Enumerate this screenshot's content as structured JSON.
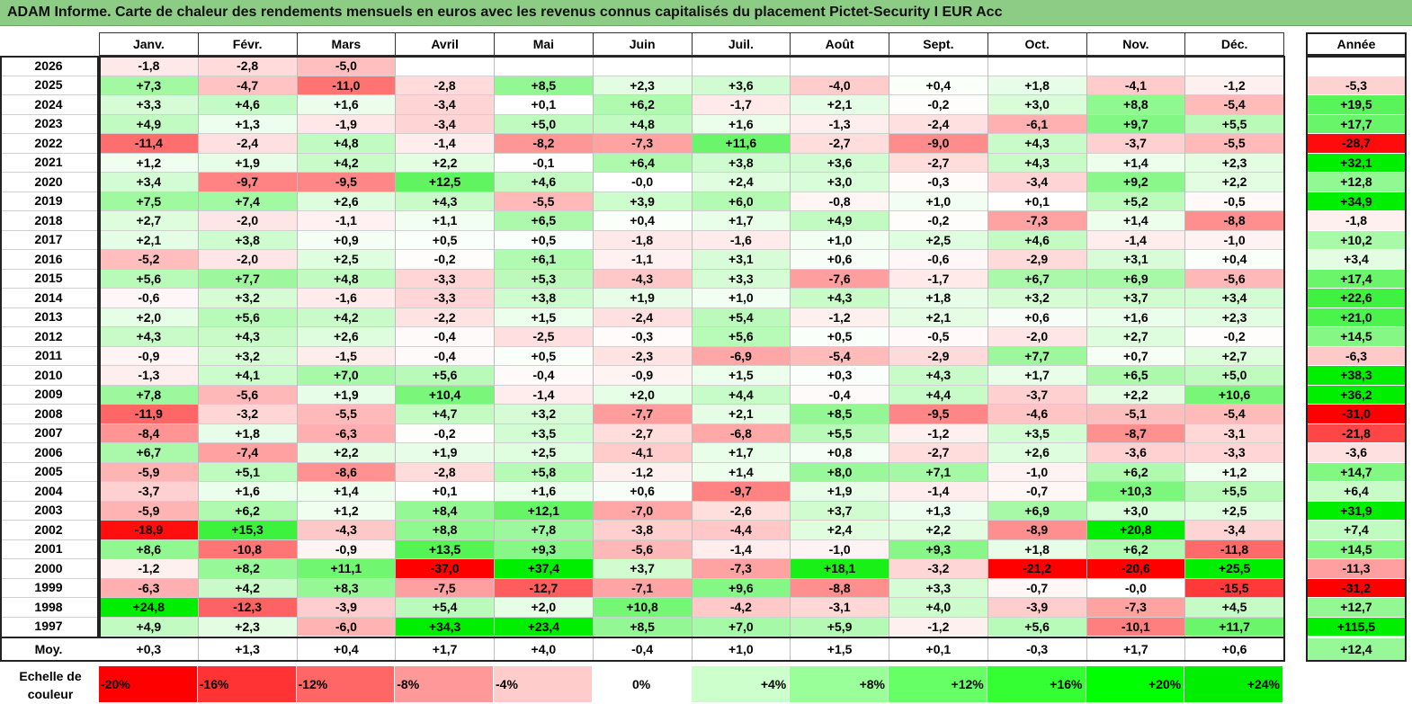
{
  "title": "ADAM Informe. Carte de chaleur des rendements mensuels en euros avec les revenus connus capitalisés du placement Pictet-Security I EUR Acc",
  "chart_data": {
    "type": "heatmap",
    "columns": [
      "Janv.",
      "Févr.",
      "Mars",
      "Avril",
      "Mai",
      "Juin",
      "Juil.",
      "Août",
      "Sept.",
      "Oct.",
      "Nov.",
      "Déc."
    ],
    "year_header": "Année",
    "avg_label": "Moy.",
    "rows": [
      {
        "year": "2026",
        "months": [
          "-1,8",
          "-2,8",
          "-5,0",
          "",
          "",
          "",
          "",
          "",
          "",
          "",
          "",
          ""
        ],
        "annual": ""
      },
      {
        "year": "2025",
        "months": [
          "+7,3",
          "-4,7",
          "-11,0",
          "-2,8",
          "+8,5",
          "+2,3",
          "+3,6",
          "-4,0",
          "+0,4",
          "+1,8",
          "-4,1",
          "-1,2"
        ],
        "annual": "-5,3"
      },
      {
        "year": "2024",
        "months": [
          "+3,3",
          "+4,6",
          "+1,6",
          "-3,4",
          "+0,1",
          "+6,2",
          "-1,7",
          "+2,1",
          "-0,2",
          "+3,0",
          "+8,8",
          "-5,4"
        ],
        "annual": "+19,5"
      },
      {
        "year": "2023",
        "months": [
          "+4,9",
          "+1,3",
          "-1,9",
          "-3,4",
          "+5,0",
          "+4,8",
          "+1,6",
          "-1,3",
          "-2,4",
          "-6,1",
          "+9,7",
          "+5,5"
        ],
        "annual": "+17,7"
      },
      {
        "year": "2022",
        "months": [
          "-11,4",
          "-2,4",
          "+4,8",
          "-1,4",
          "-8,2",
          "-7,3",
          "+11,6",
          "-2,7",
          "-9,0",
          "+4,3",
          "-3,7",
          "-5,5"
        ],
        "annual": "-28,7"
      },
      {
        "year": "2021",
        "months": [
          "+1,2",
          "+1,9",
          "+4,2",
          "+2,2",
          "-0,1",
          "+6,4",
          "+3,8",
          "+3,6",
          "-2,7",
          "+4,3",
          "+1,4",
          "+2,3"
        ],
        "annual": "+32,1"
      },
      {
        "year": "2020",
        "months": [
          "+3,4",
          "-9,7",
          "-9,5",
          "+12,5",
          "+4,6",
          "-0,0",
          "+2,4",
          "+3,0",
          "-0,3",
          "-3,4",
          "+9,2",
          "+2,2"
        ],
        "annual": "+12,8"
      },
      {
        "year": "2019",
        "months": [
          "+7,5",
          "+7,4",
          "+2,6",
          "+4,3",
          "-5,5",
          "+3,9",
          "+6,0",
          "-0,8",
          "+1,0",
          "+0,1",
          "+5,2",
          "-0,5"
        ],
        "annual": "+34,9"
      },
      {
        "year": "2018",
        "months": [
          "+2,7",
          "-2,0",
          "-1,1",
          "+1,1",
          "+6,5",
          "+0,4",
          "+1,7",
          "+4,9",
          "-0,2",
          "-7,3",
          "+1,4",
          "-8,8"
        ],
        "annual": "-1,8"
      },
      {
        "year": "2017",
        "months": [
          "+2,1",
          "+3,8",
          "+0,9",
          "+0,5",
          "+0,5",
          "-1,8",
          "-1,6",
          "+1,0",
          "+2,5",
          "+4,6",
          "-1,4",
          "-1,0"
        ],
        "annual": "+10,2"
      },
      {
        "year": "2016",
        "months": [
          "-5,2",
          "-2,0",
          "+2,5",
          "-0,2",
          "+6,1",
          "-1,1",
          "+3,1",
          "+0,6",
          "-0,6",
          "-2,9",
          "+3,1",
          "+0,4"
        ],
        "annual": "+3,4"
      },
      {
        "year": "2015",
        "months": [
          "+5,6",
          "+7,7",
          "+4,8",
          "-3,3",
          "+5,3",
          "-4,3",
          "+3,3",
          "-7,6",
          "-1,7",
          "+6,7",
          "+6,9",
          "-5,6"
        ],
        "annual": "+17,4"
      },
      {
        "year": "2014",
        "months": [
          "-0,6",
          "+3,2",
          "-1,6",
          "-3,3",
          "+3,8",
          "+1,9",
          "+1,0",
          "+4,3",
          "+1,8",
          "+3,2",
          "+3,7",
          "+3,4"
        ],
        "annual": "+22,6"
      },
      {
        "year": "2013",
        "months": [
          "+2,0",
          "+5,6",
          "+4,2",
          "-2,2",
          "+1,5",
          "-2,4",
          "+5,4",
          "-1,2",
          "+2,1",
          "+0,6",
          "+1,6",
          "+2,3"
        ],
        "annual": "+21,0"
      },
      {
        "year": "2012",
        "months": [
          "+4,3",
          "+4,3",
          "+2,6",
          "-0,4",
          "-2,5",
          "-0,3",
          "+5,6",
          "+0,5",
          "-0,5",
          "-2,0",
          "+2,7",
          "-0,2"
        ],
        "annual": "+14,5"
      },
      {
        "year": "2011",
        "months": [
          "-0,9",
          "+3,2",
          "-1,5",
          "-0,4",
          "+0,5",
          "-2,3",
          "-6,9",
          "-5,4",
          "-2,9",
          "+7,7",
          "+0,7",
          "+2,7"
        ],
        "annual": "-6,3"
      },
      {
        "year": "2010",
        "months": [
          "-1,3",
          "+4,1",
          "+7,0",
          "+5,6",
          "-0,4",
          "-0,9",
          "+1,5",
          "+0,3",
          "+4,3",
          "+1,7",
          "+6,5",
          "+5,0"
        ],
        "annual": "+38,3"
      },
      {
        "year": "2009",
        "months": [
          "+7,8",
          "-5,6",
          "+1,9",
          "+10,4",
          "-1,4",
          "+2,0",
          "+4,4",
          "-0,4",
          "+4,4",
          "-3,7",
          "+2,2",
          "+10,6"
        ],
        "annual": "+36,2"
      },
      {
        "year": "2008",
        "months": [
          "-11,9",
          "-3,2",
          "-5,5",
          "+4,7",
          "+3,2",
          "-7,7",
          "+2,1",
          "+8,5",
          "-9,5",
          "-4,6",
          "-5,1",
          "-5,4"
        ],
        "annual": "-31,0"
      },
      {
        "year": "2007",
        "months": [
          "-8,4",
          "+1,8",
          "-6,3",
          "-0,2",
          "+3,5",
          "-2,7",
          "-6,8",
          "+5,5",
          "-1,2",
          "+3,5",
          "-8,7",
          "-3,1"
        ],
        "annual": "-21,8"
      },
      {
        "year": "2006",
        "months": [
          "+6,7",
          "-7,4",
          "+2,2",
          "+1,9",
          "+2,5",
          "-4,1",
          "+1,7",
          "+0,8",
          "-2,7",
          "+2,6",
          "-3,6",
          "-3,3"
        ],
        "annual": "-3,6"
      },
      {
        "year": "2005",
        "months": [
          "-5,9",
          "+5,1",
          "-8,6",
          "-2,8",
          "+5,8",
          "-1,2",
          "+1,4",
          "+8,0",
          "+7,1",
          "-1,0",
          "+6,2",
          "+1,2"
        ],
        "annual": "+14,7"
      },
      {
        "year": "2004",
        "months": [
          "-3,7",
          "+1,6",
          "+1,4",
          "+0,1",
          "+1,6",
          "+0,6",
          "-9,7",
          "+1,9",
          "-1,4",
          "-0,7",
          "+10,3",
          "+5,5"
        ],
        "annual": "+6,4"
      },
      {
        "year": "2003",
        "months": [
          "-5,9",
          "+6,2",
          "+1,2",
          "+8,4",
          "+12,1",
          "-7,0",
          "-2,6",
          "+3,7",
          "+1,3",
          "+6,9",
          "+3,0",
          "+2,5"
        ],
        "annual": "+31,9"
      },
      {
        "year": "2002",
        "months": [
          "-18,9",
          "+15,3",
          "-4,3",
          "+8,8",
          "+7,8",
          "-3,8",
          "-4,4",
          "+2,4",
          "+2,2",
          "-8,9",
          "+20,8",
          "-3,4"
        ],
        "annual": "+7,4"
      },
      {
        "year": "2001",
        "months": [
          "+8,6",
          "-10,8",
          "-0,9",
          "+13,5",
          "+9,3",
          "-5,6",
          "-1,4",
          "-1,0",
          "+9,3",
          "+1,8",
          "+6,2",
          "-11,8"
        ],
        "annual": "+14,5"
      },
      {
        "year": "2000",
        "months": [
          "-1,2",
          "+8,2",
          "+11,1",
          "-37,0",
          "+37,4",
          "+3,7",
          "-7,3",
          "+18,1",
          "-3,2",
          "-21,2",
          "-20,6",
          "+25,5"
        ],
        "annual": "-11,3"
      },
      {
        "year": "1999",
        "months": [
          "-6,3",
          "+4,2",
          "+8,3",
          "-7,5",
          "-12,7",
          "-7,1",
          "+9,6",
          "-8,8",
          "+3,3",
          "-0,7",
          "-0,0",
          "-15,5"
        ],
        "annual": "-31,2"
      },
      {
        "year": "1998",
        "months": [
          "+24,8",
          "-12,3",
          "-3,9",
          "+5,4",
          "+2,0",
          "+10,8",
          "-4,2",
          "-3,1",
          "+4,0",
          "-3,9",
          "-7,3",
          "+4,5"
        ],
        "annual": "+12,7"
      },
      {
        "year": "1997",
        "months": [
          "+4,9",
          "+2,3",
          "-6,0",
          "+34,3",
          "+23,4",
          "+8,5",
          "+7,0",
          "+5,9",
          "-1,2",
          "+5,6",
          "-10,1",
          "+11,7"
        ],
        "annual": "+115,5"
      }
    ],
    "average": {
      "months": [
        "+0,3",
        "+1,3",
        "+0,4",
        "+1,7",
        "+4,0",
        "-0,4",
        "+1,0",
        "+1,5",
        "+0,1",
        "-0,3",
        "+1,7",
        "+0,6"
      ],
      "annual": "+12,4"
    },
    "color_scale": {
      "label": "Echelle de couleur",
      "stops": [
        {
          "label": "-20%",
          "value": -20,
          "color": "#ff0000"
        },
        {
          "label": "-16%",
          "value": -16,
          "color": "#ff3333"
        },
        {
          "label": "-12%",
          "value": -12,
          "color": "#ff6666"
        },
        {
          "label": "-8%",
          "value": -8,
          "color": "#ff9999"
        },
        {
          "label": "-4%",
          "value": -4,
          "color": "#ffcccc"
        },
        {
          "label": "0%",
          "value": 0,
          "color": "#ffffff"
        },
        {
          "label": "+4%",
          "value": 4,
          "color": "#ccffcc"
        },
        {
          "label": "+8%",
          "value": 8,
          "color": "#99ff99"
        },
        {
          "label": "+12%",
          "value": 12,
          "color": "#66ff66"
        },
        {
          "label": "+16%",
          "value": 16,
          "color": "#33ff33"
        },
        {
          "label": "+20%",
          "value": 20,
          "color": "#00ff00"
        },
        {
          "label": "+24%",
          "value": 24,
          "color": "#00ee00"
        }
      ]
    },
    "colors": {
      "negative": "#ff0000",
      "zero": "#ffffff",
      "positive": "#00e000",
      "title_bar": "#8ccc84"
    }
  }
}
